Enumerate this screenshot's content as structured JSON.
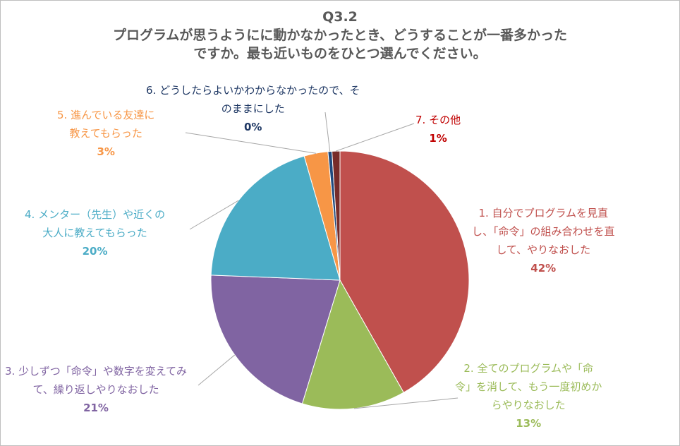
{
  "chart_data": {
    "type": "pie",
    "title_lines": [
      "Q3.2",
      "プログラムが思うようにに動かなかったとき、どうすることが一番多かった",
      "ですか。最も近いものをひとつ選んでください。"
    ],
    "slices": [
      {
        "label_lines": [
          "1. 自分でプログラムを見直",
          "し、「命令」の組み合わせを直",
          "して、やりなおした"
        ],
        "value": 42,
        "value_label": "42%",
        "color": "#c0504d",
        "label_color": "#c0504d"
      },
      {
        "label_lines": [
          "2. 全てのプログラムや「命",
          "令」を消して、もう一度初めか",
          "らやりなおした"
        ],
        "value": 13,
        "value_label": "13%",
        "color": "#9bbb59",
        "label_color": "#9bbb59"
      },
      {
        "label_lines": [
          "3. 少しずつ「命令」や数字を変えてみ",
          "て、繰り返しやりなおした"
        ],
        "value": 21,
        "value_label": "21%",
        "color": "#8064a2",
        "label_color": "#8064a2"
      },
      {
        "label_lines": [
          "4. メンター（先生）や近くの",
          "大人に教えてもらった"
        ],
        "value": 20,
        "value_label": "20%",
        "color": "#4bacc6",
        "label_color": "#4bacc6"
      },
      {
        "label_lines": [
          "5. 進んでいる友達に",
          "教えてもらった"
        ],
        "value": 3,
        "value_label": "3%",
        "color": "#f79646",
        "label_color": "#f79646"
      },
      {
        "label_lines": [
          "6. どうしたらよいかわからなかったので、そ",
          "のままにした"
        ],
        "value": 0.5,
        "value_label": "0%",
        "color": "#1f497d",
        "label_color": "#1f3864"
      },
      {
        "label_lines": [
          "7. その他"
        ],
        "value": 1,
        "value_label": "1%",
        "color": "#772c2a",
        "label_color": "#c00000"
      }
    ]
  }
}
